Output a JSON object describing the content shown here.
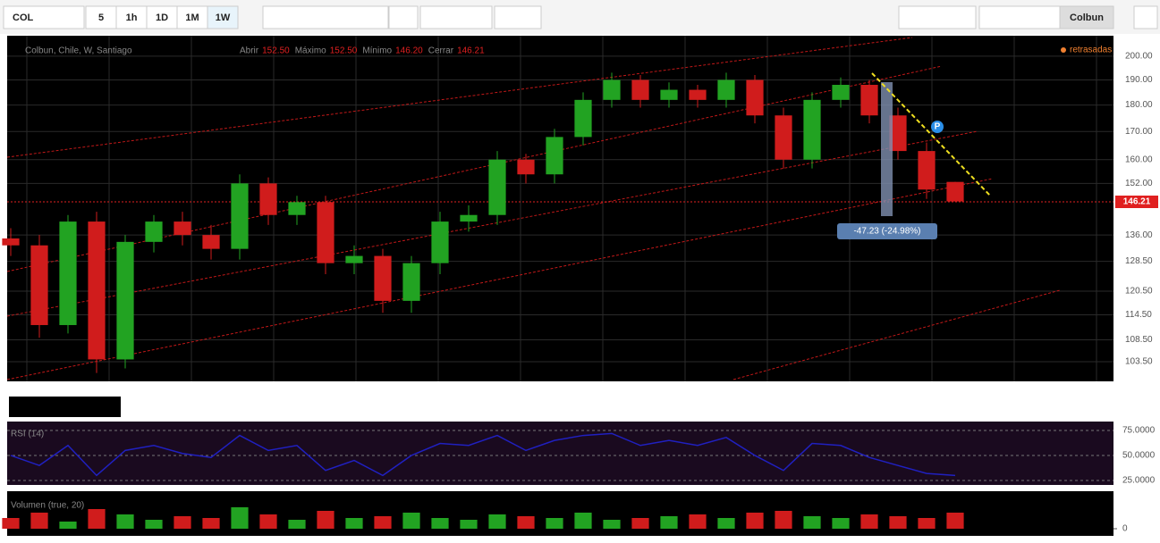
{
  "toolbar": {
    "symbol": "COL",
    "intervals": [
      "5",
      "1h",
      "1D",
      "1M",
      "1W"
    ],
    "layout_name": "Colbun"
  },
  "header": {
    "title": "Colbun, Chile, W, Santiago",
    "ohlc": [
      {
        "label": "Abrir",
        "value": "152.50"
      },
      {
        "label": "Máximo",
        "value": "152.50"
      },
      {
        "label": "Mínimo",
        "value": "146.20"
      },
      {
        "label": "Cerrar",
        "value": "146.21"
      }
    ],
    "status": "retrasadas",
    "last_price": "146.21",
    "measure": "-47.23 (-24.98%)",
    "pin": "P"
  },
  "chart_data": [
    {
      "type": "candlestick",
      "log_scale": true,
      "up_color": "#22a322",
      "down_color": "#d01c1c",
      "open": [
        135,
        133,
        112,
        140,
        104,
        134,
        140,
        136,
        132,
        152,
        142,
        146,
        128,
        130,
        118,
        128,
        140,
        142,
        160,
        155,
        168,
        182,
        190,
        182,
        186,
        182,
        190,
        176,
        160,
        182,
        188,
        176,
        163,
        152.5
      ],
      "high": [
        138,
        136,
        142,
        143,
        136,
        142,
        143,
        139,
        155,
        154,
        148,
        148,
        133,
        132,
        130,
        143,
        145,
        163,
        162,
        171,
        185,
        193,
        192,
        189,
        188,
        193,
        192,
        179,
        185,
        191,
        190,
        179,
        166,
        152.5
      ],
      "low": [
        130,
        109,
        110,
        101,
        102,
        131,
        133,
        129,
        129,
        139,
        139,
        125,
        125,
        115,
        115,
        125,
        137,
        139,
        152,
        152,
        165,
        179,
        179,
        179,
        179,
        179,
        173,
        157,
        157,
        179,
        173,
        160,
        147,
        146.2
      ],
      "close": [
        133,
        112,
        140,
        104,
        134,
        140,
        136,
        132,
        152,
        142,
        146,
        128,
        130,
        118,
        128,
        140,
        142,
        160,
        155,
        168,
        182,
        190,
        182,
        186,
        182,
        190,
        176,
        160,
        182,
        188,
        176,
        163,
        150,
        146.21
      ],
      "ylim": [
        99.2,
        209
      ],
      "yticks": [
        {
          "value": 200,
          "label": "200.00"
        },
        {
          "value": 190,
          "label": "190.00"
        },
        {
          "value": 180,
          "label": "180.00"
        },
        {
          "value": 170,
          "label": "170.00"
        },
        {
          "value": 160,
          "label": "160.00"
        },
        {
          "value": 152,
          "label": "152.00"
        },
        {
          "value": 136,
          "label": "136.00"
        },
        {
          "value": 128.5,
          "label": "128.50"
        },
        {
          "value": 120.5,
          "label": "120.50"
        },
        {
          "value": 114.5,
          "label": "114.50"
        },
        {
          "value": 108.5,
          "label": "108.50"
        },
        {
          "value": 103.5,
          "label": "103.50"
        }
      ]
    },
    {
      "type": "line",
      "title": "RSI (14)",
      "color": "#2020c0",
      "values": [
        50,
        40,
        60,
        30,
        55,
        60,
        52,
        48,
        70,
        55,
        60,
        35,
        45,
        30,
        50,
        62,
        60,
        70,
        55,
        65,
        70,
        72,
        60,
        65,
        60,
        68,
        50,
        35,
        62,
        60,
        48,
        40,
        32,
        30
      ],
      "ylim": [
        20.5,
        83.9
      ],
      "yticks": [
        {
          "value": 75,
          "label": "75.0000"
        },
        {
          "value": 50,
          "label": "50.0000"
        },
        {
          "value": 25,
          "label": "25.0000"
        }
      ]
    },
    {
      "type": "bar",
      "title": "Volumen (true, 20)",
      "values": [
        30,
        45,
        20,
        55,
        40,
        25,
        35,
        30,
        60,
        40,
        25,
        50,
        30,
        35,
        45,
        30,
        25,
        40,
        35,
        30,
        45,
        25,
        30,
        35,
        40,
        30,
        45,
        50,
        35,
        30,
        40,
        35,
        30,
        45
      ],
      "ylim": [
        0,
        100
      ],
      "yticks": [
        0
      ]
    }
  ]
}
